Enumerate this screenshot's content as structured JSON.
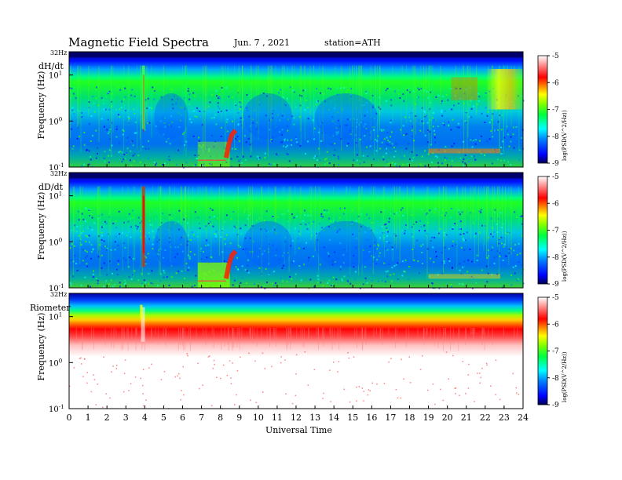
{
  "header": {
    "title": "Magnetic  Field  Spectra",
    "date": "Jun.  7  , 2021",
    "station": "station=ATH"
  },
  "colors": {
    "spectrum_stops": [
      "#000080",
      "#0000ff",
      "#0080ff",
      "#00ffff",
      "#00ff80",
      "#00ff00",
      "#80ff00",
      "#ffff00",
      "#ff8000",
      "#ff0000",
      "#ff9999",
      "#ffffff"
    ]
  },
  "chart_data": [
    {
      "type": "heatmap",
      "panel_label": "dH/dt",
      "ylabel": "Frequency  (Hz)",
      "top_label": "32Hz",
      "y_ticks": [
        {
          "base": "10",
          "exp": "1"
        },
        {
          "base": "10",
          "exp": "0"
        },
        {
          "base": "10",
          "exp": "-1"
        }
      ],
      "colorbar_label": "log(PSD(V^2/Hz))",
      "colorbar_ticks": [
        "-5",
        "-6",
        "-7",
        "-8",
        "-9"
      ],
      "colorbar_range": [
        -9,
        -5
      ]
    },
    {
      "type": "heatmap",
      "panel_label": "dD/dt",
      "ylabel": "Frequency  (Hz)",
      "top_label": "32Hz",
      "y_ticks": [
        {
          "base": "10",
          "exp": "1"
        },
        {
          "base": "10",
          "exp": "0"
        },
        {
          "base": "10",
          "exp": "-1"
        }
      ],
      "colorbar_label": "log(PSD(V^2/Hz))",
      "colorbar_ticks": [
        "-5",
        "-6",
        "-7",
        "-8",
        "-9"
      ],
      "colorbar_range": [
        -9,
        -5
      ]
    },
    {
      "type": "heatmap",
      "panel_label": "Riometer",
      "ylabel": "Frequency  (Hz)",
      "top_label": "32Hz",
      "y_ticks": [
        {
          "base": "10",
          "exp": "1"
        },
        {
          "base": "10",
          "exp": "0"
        },
        {
          "base": "10",
          "exp": "-1"
        }
      ],
      "colorbar_label": "log(PSD(V^2/Hz))",
      "colorbar_ticks": [
        "-5",
        "-6",
        "-7",
        "-8",
        "-9"
      ],
      "colorbar_range": [
        -9,
        -5
      ]
    }
  ],
  "x_axis": {
    "label": "Universal  Time",
    "ticks": [
      "0",
      "1",
      "2",
      "3",
      "4",
      "5",
      "6",
      "7",
      "8",
      "9",
      "10",
      "11",
      "12",
      "13",
      "14",
      "15",
      "16",
      "17",
      "18",
      "19",
      "20",
      "21",
      "22",
      "23",
      "24"
    ],
    "range": [
      0,
      24
    ]
  }
}
